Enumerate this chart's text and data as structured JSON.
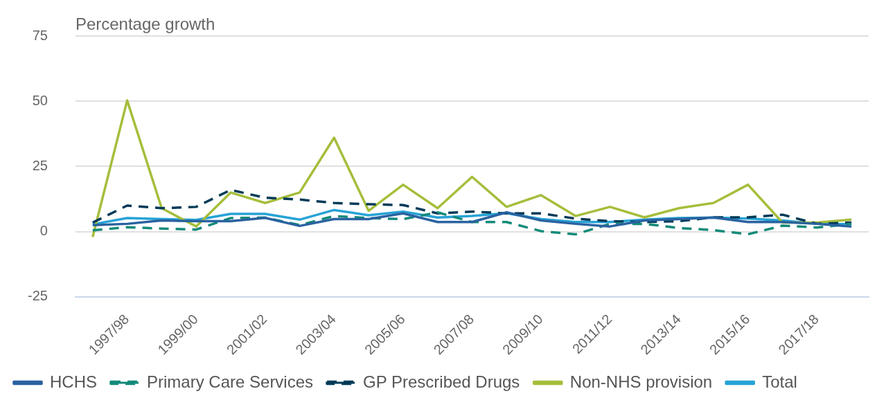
{
  "chart_data": {
    "type": "line",
    "ylabel": "Percentage growth",
    "categories": [
      null,
      "1997/98",
      null,
      "1999/00",
      null,
      "2001/02",
      null,
      "2003/04",
      null,
      "2005/06",
      null,
      "2007/08",
      null,
      "2009/10",
      null,
      "2011/12",
      null,
      "2013/14",
      null,
      "2015/16",
      null,
      "2017/18",
      null
    ],
    "ylim": [
      -25,
      75
    ],
    "yticks": [
      -25,
      0,
      25,
      50,
      75
    ],
    "grid": "y",
    "legend": "bottom",
    "marker": "none",
    "series": [
      {
        "name": "HCHS",
        "color": "#2a62a0",
        "line_style": "solid",
        "values": [
          2.5,
          3,
          4.3,
          4,
          4,
          5.3,
          2.2,
          4.8,
          4.8,
          7,
          3.7,
          3.7,
          7.4,
          4.3,
          3,
          2,
          4.3,
          4.8,
          5.4,
          3.7,
          3.7,
          3,
          2
        ]
      },
      {
        "name": "Primary Care Services",
        "color": "#138a7a",
        "line_style": "dashed",
        "values": [
          0.5,
          1.7,
          1.2,
          0.8,
          5.2,
          5.4,
          2.5,
          6,
          5.2,
          4.8,
          7.4,
          3.7,
          3.7,
          0.2,
          -1,
          3,
          3,
          1.4,
          0.6,
          -1,
          2.3,
          1.6,
          3
        ]
      },
      {
        "name": "GP Prescribed Drugs",
        "color": "#003a57",
        "line_style": "dashed",
        "values": [
          3.5,
          10,
          9,
          9.5,
          16,
          13,
          12.3,
          11,
          10.5,
          10.2,
          7,
          7.7,
          7,
          7,
          5,
          4,
          3.7,
          4,
          5.5,
          5.5,
          6.5,
          3,
          3.5
        ]
      },
      {
        "name": "Non-NHS provision",
        "color": "#a5be3b",
        "line_style": "solid",
        "values": [
          -2,
          50.3,
          9,
          2,
          15,
          11,
          15,
          36,
          8,
          18,
          9,
          21,
          9.5,
          14,
          6,
          9.5,
          5.5,
          9,
          11,
          18,
          3.5,
          3.5,
          4.6
        ]
      },
      {
        "name": "Total",
        "color": "#27a3d6",
        "line_style": "solid",
        "values": [
          2.8,
          5.2,
          4.8,
          4.5,
          6.8,
          6.8,
          4.6,
          8.3,
          6.3,
          7.7,
          5.4,
          6,
          7.1,
          4.8,
          3.7,
          3.7,
          4.6,
          5.2,
          5.4,
          5,
          4.3,
          3,
          2.9
        ]
      }
    ]
  }
}
